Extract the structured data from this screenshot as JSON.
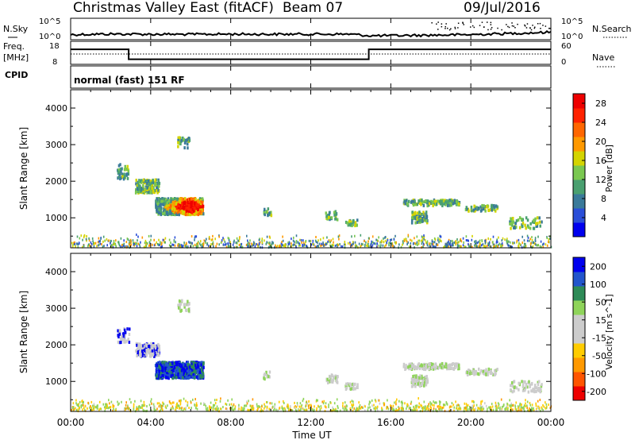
{
  "header": {
    "title": "Christmas Valley East (fitACF)",
    "beam": "Beam 07",
    "date": "09/Jul/2016"
  },
  "left_labels": {
    "nsky": "N.Sky",
    "freq_line1": "Freq.",
    "freq_line2": "[MHz]",
    "cpid": "CPID"
  },
  "right_labels": {
    "nsearch": "N.Search",
    "nave": "Nave"
  },
  "mode_label": "normal (fast) 151 RF",
  "time_axis": {
    "label": "Time UT",
    "ticks": [
      "00:00",
      "04:00",
      "08:00",
      "12:00",
      "16:00",
      "20:00",
      "00:00"
    ]
  },
  "colors": {
    "power_scale": [
      "#0000ee",
      "#2a4ed8",
      "#3a7a9a",
      "#4aa070",
      "#7ac850",
      "#d4d400",
      "#ff9900",
      "#ff6600",
      "#ff2200",
      "#ee0000"
    ],
    "velocity_scale": [
      "#0000ee",
      "#2255cc",
      "#2e8b57",
      "#8fd45a",
      "#cccccc",
      "#cccccc",
      "#ffcc00",
      "#ff9900",
      "#ff5500",
      "#ee0000"
    ]
  },
  "chart_data": [
    {
      "type": "line",
      "panel": "noise",
      "xlim": [
        0,
        24
      ],
      "ylabel": "N.Sky",
      "y2label": "N.Search",
      "yticks": [
        "10^5",
        "10^0"
      ],
      "y2ticks": [
        "10^5",
        "10^0"
      ],
      "series": [
        {
          "x": [
            0,
            2,
            4,
            6,
            8,
            10,
            12,
            14,
            15,
            16,
            18,
            20,
            22,
            24
          ],
          "values": [
            0.3,
            0.35,
            0.33,
            0.32,
            0.34,
            0.33,
            0.34,
            0.33,
            0.2,
            0.21,
            0.25,
            0.3,
            0.4,
            0.5
          ]
        }
      ]
    },
    {
      "type": "line",
      "panel": "frequency",
      "xlim": [
        0,
        24
      ],
      "ylim": [
        8,
        18
      ],
      "yticks": [
        18,
        8
      ],
      "y2lim": [
        0,
        60
      ],
      "y2ticks": [
        60,
        0
      ],
      "series": [
        {
          "x": [
            0,
            2.9,
            2.9,
            14.9,
            14.9,
            24
          ],
          "values": [
            14.5,
            14.5,
            10.2,
            10.2,
            14.5,
            14.5
          ]
        },
        {
          "x": [
            0,
            24
          ],
          "values": [
            27,
            27
          ]
        }
      ]
    },
    {
      "type": "heatmap",
      "panel": "power",
      "xlim": [
        0,
        24
      ],
      "ylim": [
        180,
        4500
      ],
      "ylabel": "Slant Range [km]",
      "yticks": [
        1000,
        2000,
        3000,
        4000
      ],
      "colorbar_label": "Power [dB]",
      "colorbar_ticks": [
        4,
        8,
        12,
        16,
        20,
        24,
        28
      ],
      "clim": [
        0,
        30
      ]
    },
    {
      "type": "heatmap",
      "panel": "velocity",
      "xlim": [
        0,
        24
      ],
      "ylim": [
        180,
        4500
      ],
      "ylabel": "Slant Range [km]",
      "yticks": [
        1000,
        2000,
        3000,
        4000
      ],
      "colorbar_label": "Velocity [m s^-1]",
      "colorbar_ticks": [
        200,
        100,
        50,
        15,
        -15,
        -50,
        -100,
        -200
      ]
    }
  ]
}
